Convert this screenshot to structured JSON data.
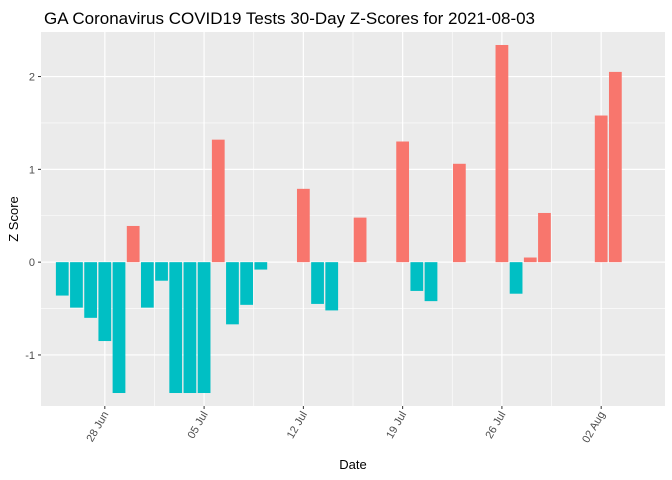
{
  "chart_data": {
    "type": "bar",
    "title": "GA Coronavirus COVID19 Tests 30-Day Z-Scores for 2021-08-03",
    "xlabel": "Date",
    "ylabel": "Z Score",
    "ylim": [
      -1.55,
      2.48
    ],
    "y_ticks": [
      -1,
      0,
      1,
      2
    ],
    "y_tick_labels": [
      "-1",
      "0",
      "1",
      "2"
    ],
    "x_tick_labels": [
      "28 Jun",
      "05 Jul",
      "12 Jul",
      "19 Jul",
      "26 Jul",
      "02 Aug"
    ],
    "x_tick_days": [
      3,
      10,
      17,
      24,
      31,
      38
    ],
    "x_domain_days": [
      -1.5,
      42.5
    ],
    "positive_color": "#F8766D",
    "negative_color": "#00BFC4",
    "panel_color": "#EBEBEB",
    "grid_color": "#FFFFFF",
    "bars": [
      {
        "date": "2021-06-25",
        "day": 0,
        "value": -0.36
      },
      {
        "date": "2021-06-26",
        "day": 1,
        "value": -0.49
      },
      {
        "date": "2021-06-27",
        "day": 2,
        "value": -0.6
      },
      {
        "date": "2021-06-28",
        "day": 3,
        "value": -0.85
      },
      {
        "date": "2021-06-29",
        "day": 4,
        "value": -1.41
      },
      {
        "date": "2021-06-30",
        "day": 5,
        "value": 0.39
      },
      {
        "date": "2021-07-01",
        "day": 6,
        "value": -0.49
      },
      {
        "date": "2021-07-02",
        "day": 7,
        "value": -0.2
      },
      {
        "date": "2021-07-03",
        "day": 8,
        "value": -1.41
      },
      {
        "date": "2021-07-04",
        "day": 9,
        "value": -1.41
      },
      {
        "date": "2021-07-05",
        "day": 10,
        "value": -1.41
      },
      {
        "date": "2021-07-06",
        "day": 11,
        "value": 1.32
      },
      {
        "date": "2021-07-07",
        "day": 12,
        "value": -0.67
      },
      {
        "date": "2021-07-08",
        "day": 13,
        "value": -0.46
      },
      {
        "date": "2021-07-09",
        "day": 14,
        "value": -0.08
      },
      {
        "date": "2021-07-12",
        "day": 17,
        "value": 0.79
      },
      {
        "date": "2021-07-13",
        "day": 18,
        "value": -0.45
      },
      {
        "date": "2021-07-14",
        "day": 19,
        "value": -0.52
      },
      {
        "date": "2021-07-16",
        "day": 21,
        "value": 0.48
      },
      {
        "date": "2021-07-19",
        "day": 24,
        "value": 1.3
      },
      {
        "date": "2021-07-20",
        "day": 25,
        "value": -0.31
      },
      {
        "date": "2021-07-21",
        "day": 26,
        "value": -0.42
      },
      {
        "date": "2021-07-23",
        "day": 28,
        "value": 1.06
      },
      {
        "date": "2021-07-26",
        "day": 31,
        "value": 2.34
      },
      {
        "date": "2021-07-27",
        "day": 32,
        "value": -0.34
      },
      {
        "date": "2021-07-28",
        "day": 33,
        "value": 0.05
      },
      {
        "date": "2021-07-29",
        "day": 34,
        "value": 0.53
      },
      {
        "date": "2021-08-02",
        "day": 38,
        "value": 1.58
      },
      {
        "date": "2021-08-03",
        "day": 39,
        "value": 2.05
      }
    ]
  }
}
